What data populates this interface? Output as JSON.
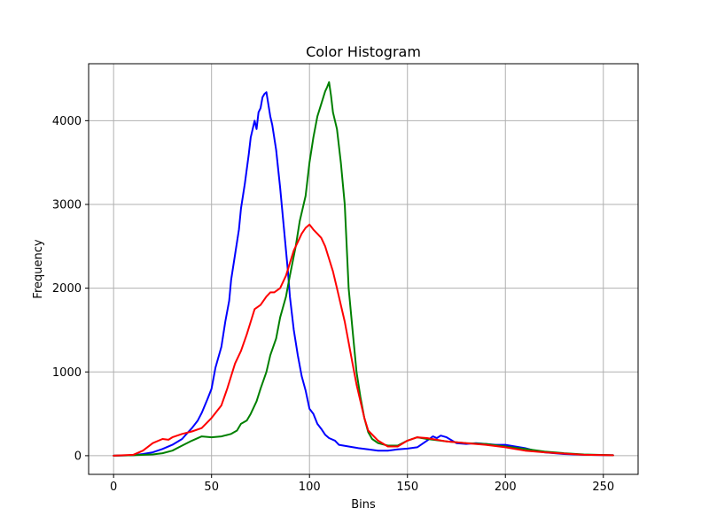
{
  "chart_data": {
    "type": "line",
    "title": "Color Histogram",
    "xlabel": "Bins",
    "ylabel": "Frequency",
    "xlim": [
      -12.75,
      267.75
    ],
    "ylim": [
      -223,
      4680
    ],
    "xticks": [
      0,
      50,
      100,
      150,
      200,
      250
    ],
    "yticks": [
      0,
      1000,
      2000,
      3000,
      4000
    ],
    "grid": true,
    "series": [
      {
        "color": "#0000ff",
        "x": [
          0,
          10,
          15,
          20,
          25,
          30,
          35,
          38,
          40,
          43,
          45,
          48,
          50,
          52,
          55,
          57,
          59,
          60,
          62,
          64,
          65,
          67,
          69,
          70,
          72,
          73,
          74,
          75,
          76,
          77,
          78,
          80,
          81,
          83,
          85,
          87,
          89,
          90,
          92,
          94,
          96,
          98,
          100,
          102,
          104,
          106,
          108,
          110,
          113,
          115,
          120,
          125,
          130,
          135,
          140,
          145,
          150,
          155,
          160,
          163,
          165,
          167,
          170,
          175,
          180,
          185,
          190,
          195,
          200,
          205,
          210,
          215,
          220,
          230,
          240,
          255
        ],
        "y": [
          0,
          5,
          20,
          40,
          80,
          130,
          200,
          280,
          330,
          420,
          510,
          680,
          800,
          1050,
          1300,
          1600,
          1850,
          2100,
          2400,
          2700,
          2950,
          3250,
          3600,
          3800,
          4000,
          3900,
          4100,
          4150,
          4280,
          4320,
          4340,
          4050,
          3950,
          3650,
          3200,
          2700,
          2200,
          1900,
          1500,
          1200,
          950,
          780,
          560,
          500,
          380,
          320,
          250,
          210,
          180,
          130,
          110,
          90,
          75,
          60,
          60,
          75,
          85,
          100,
          180,
          230,
          210,
          240,
          220,
          150,
          140,
          150,
          140,
          130,
          130,
          110,
          90,
          60,
          40,
          20,
          10,
          5
        ]
      },
      {
        "color": "#008000",
        "x": [
          0,
          10,
          20,
          25,
          30,
          35,
          40,
          45,
          50,
          55,
          60,
          63,
          65,
          68,
          70,
          73,
          75,
          78,
          80,
          83,
          85,
          88,
          90,
          93,
          95,
          98,
          100,
          102,
          104,
          106,
          108,
          109,
          110,
          111,
          112,
          114,
          116,
          118,
          120,
          122,
          124,
          126,
          128,
          130,
          132,
          135,
          140,
          145,
          150,
          155,
          160,
          170,
          180,
          190,
          200,
          210,
          220,
          230,
          240,
          255
        ],
        "y": [
          0,
          5,
          15,
          30,
          60,
          120,
          180,
          230,
          220,
          230,
          260,
          300,
          380,
          420,
          500,
          650,
          800,
          1000,
          1200,
          1400,
          1650,
          1900,
          2150,
          2500,
          2800,
          3100,
          3500,
          3800,
          4050,
          4200,
          4350,
          4400,
          4460,
          4300,
          4100,
          3900,
          3500,
          3000,
          2000,
          1500,
          1000,
          700,
          450,
          280,
          200,
          150,
          120,
          120,
          180,
          220,
          200,
          170,
          150,
          140,
          110,
          80,
          50,
          30,
          15,
          5
        ]
      },
      {
        "color": "#ff0000",
        "x": [
          0,
          10,
          15,
          20,
          25,
          28,
          30,
          35,
          40,
          45,
          50,
          55,
          58,
          60,
          62,
          65,
          68,
          70,
          72,
          75,
          78,
          80,
          82,
          85,
          88,
          90,
          92,
          94,
          96,
          98,
          100,
          102,
          104,
          106,
          108,
          110,
          112,
          114,
          116,
          118,
          120,
          122,
          124,
          126,
          128,
          130,
          135,
          140,
          145,
          150,
          155,
          160,
          170,
          180,
          190,
          200,
          210,
          220,
          230,
          240,
          255
        ],
        "y": [
          0,
          10,
          60,
          150,
          200,
          190,
          220,
          260,
          290,
          330,
          450,
          600,
          800,
          950,
          1100,
          1250,
          1450,
          1600,
          1750,
          1800,
          1900,
          1950,
          1950,
          2000,
          2150,
          2300,
          2450,
          2550,
          2650,
          2720,
          2760,
          2700,
          2650,
          2600,
          2500,
          2350,
          2200,
          2000,
          1800,
          1600,
          1350,
          1100,
          850,
          650,
          450,
          300,
          180,
          110,
          110,
          180,
          220,
          210,
          170,
          150,
          130,
          100,
          60,
          40,
          25,
          10,
          5
        ]
      }
    ]
  }
}
